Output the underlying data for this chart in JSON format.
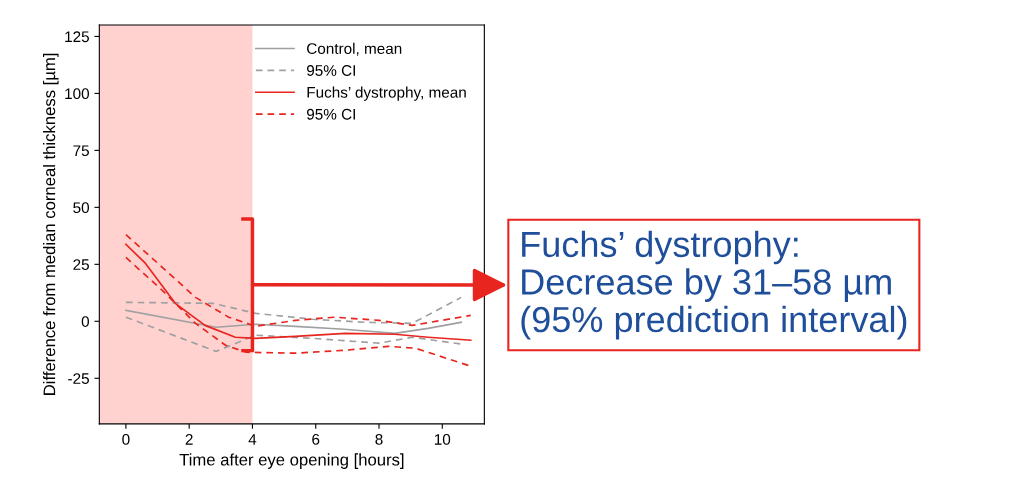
{
  "chart_data": {
    "type": "line",
    "xlabel": "Time after eye opening [hours]",
    "ylabel": "Difference from median corneal thickness [µm]",
    "xlim": [
      -0.84,
      11.33
    ],
    "xticks": [
      0,
      2,
      4,
      6,
      8,
      10
    ],
    "ylim": [
      -45,
      130
    ],
    "yticks": [
      -25,
      0,
      25,
      50,
      75,
      100,
      125
    ],
    "grid": false,
    "legend": "top right",
    "bands": [
      {
        "axis": "x",
        "from": -0.84,
        "to": 4,
        "color": "#ffd2d0"
      }
    ],
    "series": [
      {
        "name": "Control, mean",
        "color": "#a0a0a0",
        "line_style": "solid",
        "x": [
          0,
          2.85,
          4.1,
          5.35,
          6.9,
          8.5,
          9.55,
          10.6
        ],
        "values": [
          4.8,
          -2.6,
          -1.3,
          -2.2,
          -3.5,
          -5.3,
          -3.1,
          -0.4
        ]
      },
      {
        "name": "95% CI",
        "color": "#a0a0a0",
        "line_style": "dashed",
        "x": [
          0,
          2.75,
          4.1,
          5.9,
          7.5,
          9.05,
          10.6
        ],
        "values": [
          8.3,
          7.9,
          3.5,
          0.9,
          -0.4,
          -0.9,
          10.5
        ]
      },
      {
        "color": "#a0a0a0",
        "line_style": "dashed",
        "x": [
          0,
          2.85,
          4.1,
          5.9,
          8,
          9.05,
          10.6
        ],
        "values": [
          1.8,
          -13.2,
          -6.1,
          -7.5,
          -9.6,
          -7,
          -10
        ]
      },
      {
        "name": "Fuchs’ dystrophy, mean",
        "color": "#e8251f",
        "line_style": "solid",
        "x": [
          0,
          0.62,
          1.56,
          2.5,
          3.46,
          4.1,
          5.35,
          6.93,
          8.5,
          9.55,
          10.9
        ],
        "values": [
          33.8,
          25.4,
          7.9,
          -1.8,
          -7,
          -7.5,
          -6.6,
          -5.3,
          -5.7,
          -7,
          -8.3
        ]
      },
      {
        "name": "95% CI",
        "color": "#e8251f",
        "line_style": "dashed",
        "x": [
          0,
          1.15,
          2.2,
          3.25,
          4.1,
          5.35,
          6.6,
          8,
          9.05,
          10.9
        ],
        "values": [
          38,
          23.7,
          10.5,
          1.8,
          -2.2,
          0.4,
          1.8,
          0.4,
          -1.8,
          2.6
        ]
      },
      {
        "color": "#e8251f",
        "line_style": "dashed",
        "x": [
          0,
          1.15,
          2.2,
          3.15,
          3.8,
          5.35,
          6.93,
          8.3,
          9.15,
          10.9
        ],
        "values": [
          28,
          13.6,
          -0.9,
          -10.5,
          -13.6,
          -14,
          -12.7,
          -11,
          -11.8,
          -19.7
        ]
      }
    ],
    "annotations": [
      {
        "text": "Fuchs’ dystrophy:\nDecrease by 31–58 µm\n(95% prediction interval)",
        "x": 4,
        "y": 16
      }
    ]
  }
}
